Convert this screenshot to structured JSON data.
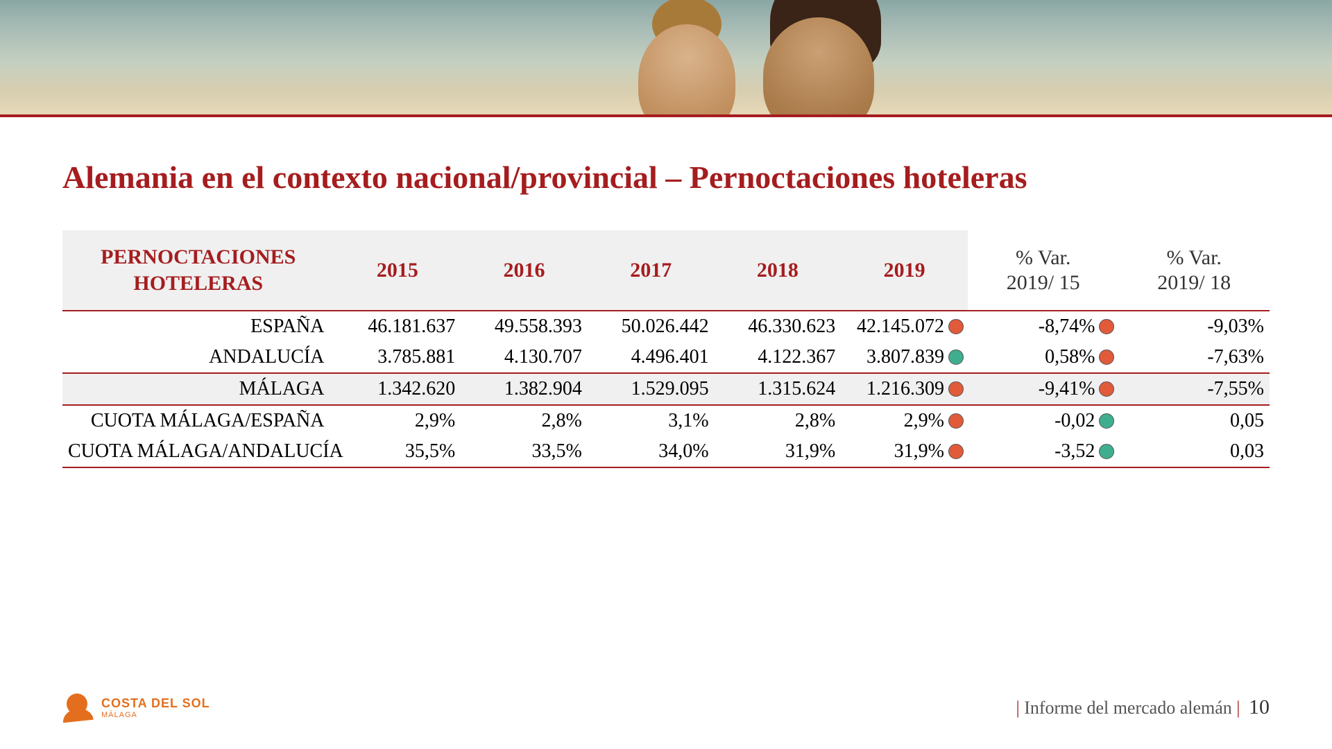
{
  "colors": {
    "accent": "#a51d1f",
    "header_bg": "#f0f0f0",
    "text_dark": "#222222",
    "text_muted": "#555555",
    "dot_red": "#e15a3a",
    "dot_green": "#3fae8f",
    "logo_orange": "#e36f1e"
  },
  "title": "Alemania en el contexto nacional/provincial – Pernoctaciones hoteleras",
  "table": {
    "header_label_line1": "PERNOCTACIONES",
    "header_label_line2": "HOTELERAS",
    "years": [
      "2015",
      "2016",
      "2017",
      "2018",
      "2019"
    ],
    "var_header_line1": "% Var.",
    "var1_header_line2": "2019/ 15",
    "var2_header_line2": "2019/ 18",
    "rows": [
      {
        "label": "ESPAÑA",
        "y2015": "46.181.637",
        "y2016": "49.558.393",
        "y2017": "50.026.442",
        "y2018": "46.330.623",
        "y2019": "42.145.072",
        "dot2019": "dot_red",
        "var1": "-8,74%",
        "dot_var1": "dot_red",
        "var2": "-9,03%",
        "highlight": false,
        "sep_top": true
      },
      {
        "label": "ANDALUCÍA",
        "y2015": "3.785.881",
        "y2016": "4.130.707",
        "y2017": "4.496.401",
        "y2018": "4.122.367",
        "y2019": "3.807.839",
        "dot2019": "dot_green",
        "var1": "0,58%",
        "dot_var1": "dot_red",
        "var2": "-7,63%",
        "highlight": false,
        "sep_bottom": true
      },
      {
        "label": "MÁLAGA",
        "y2015": "1.342.620",
        "y2016": "1.382.904",
        "y2017": "1.529.095",
        "y2018": "1.315.624",
        "y2019": "1.216.309",
        "dot2019": "dot_red",
        "var1": "-9,41%",
        "dot_var1": "dot_red",
        "var2": "-7,55%",
        "highlight": true,
        "sep_bottom": true
      },
      {
        "label": "CUOTA MÁLAGA/ESPAÑA",
        "y2015": "2,9%",
        "y2016": "2,8%",
        "y2017": "3,1%",
        "y2018": "2,8%",
        "y2019": "2,9%",
        "dot2019": "dot_red",
        "var1": "-0,02",
        "dot_var1": "dot_green",
        "var2": "0,05",
        "highlight": false
      },
      {
        "label": "CUOTA MÁLAGA/ANDALUCÍA",
        "y2015": "35,5%",
        "y2016": "33,5%",
        "y2017": "34,0%",
        "y2018": "31,9%",
        "y2019": "31,9%",
        "dot2019": "dot_red",
        "var1": "-3,52",
        "dot_var1": "dot_green",
        "var2": "0,03",
        "highlight": false,
        "sep_bottom": true
      }
    ]
  },
  "footer": {
    "logo_line1": "COSTA DEL SOL",
    "logo_line2": "MÁLAGA",
    "report_label": "Informe del mercado alemán",
    "page_number": "10"
  }
}
